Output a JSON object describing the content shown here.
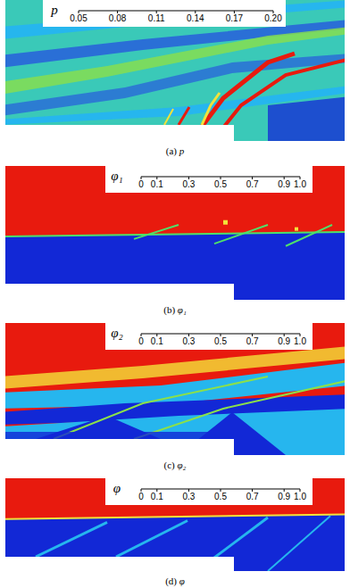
{
  "chart_data": [
    {
      "type": "contour",
      "title": "(a) p",
      "colorbar_label": "p",
      "colorbar_range": [
        0.05,
        0.2
      ],
      "colorbar_ticks": [
        0.05,
        0.08,
        0.11,
        0.14,
        0.17,
        {
          "value": 0.2,
          "label": "0.20"
        }
      ]
    },
    {
      "type": "contour",
      "title": "(b) φ₁",
      "colorbar_label": "φ₁",
      "colorbar_range": [
        0,
        1
      ],
      "colorbar_ticks": [
        0,
        0.1,
        0.3,
        0.5,
        0.7,
        0.9,
        {
          "value": 1,
          "label": "1.0"
        }
      ]
    },
    {
      "type": "contour",
      "title": "(c) φ₂",
      "colorbar_label": "φ₂",
      "colorbar_range": [
        0,
        1
      ],
      "colorbar_ticks": [
        0,
        0.1,
        0.3,
        0.5,
        0.7,
        0.9,
        {
          "value": 1,
          "label": "1.0"
        }
      ]
    },
    {
      "type": "contour",
      "title": "(d) φ",
      "colorbar_label": "φ",
      "colorbar_range": [
        0,
        1
      ],
      "colorbar_ticks": [
        0,
        0.1,
        0.3,
        0.5,
        0.7,
        0.9,
        {
          "value": 1,
          "label": "1.0"
        }
      ]
    }
  ]
}
